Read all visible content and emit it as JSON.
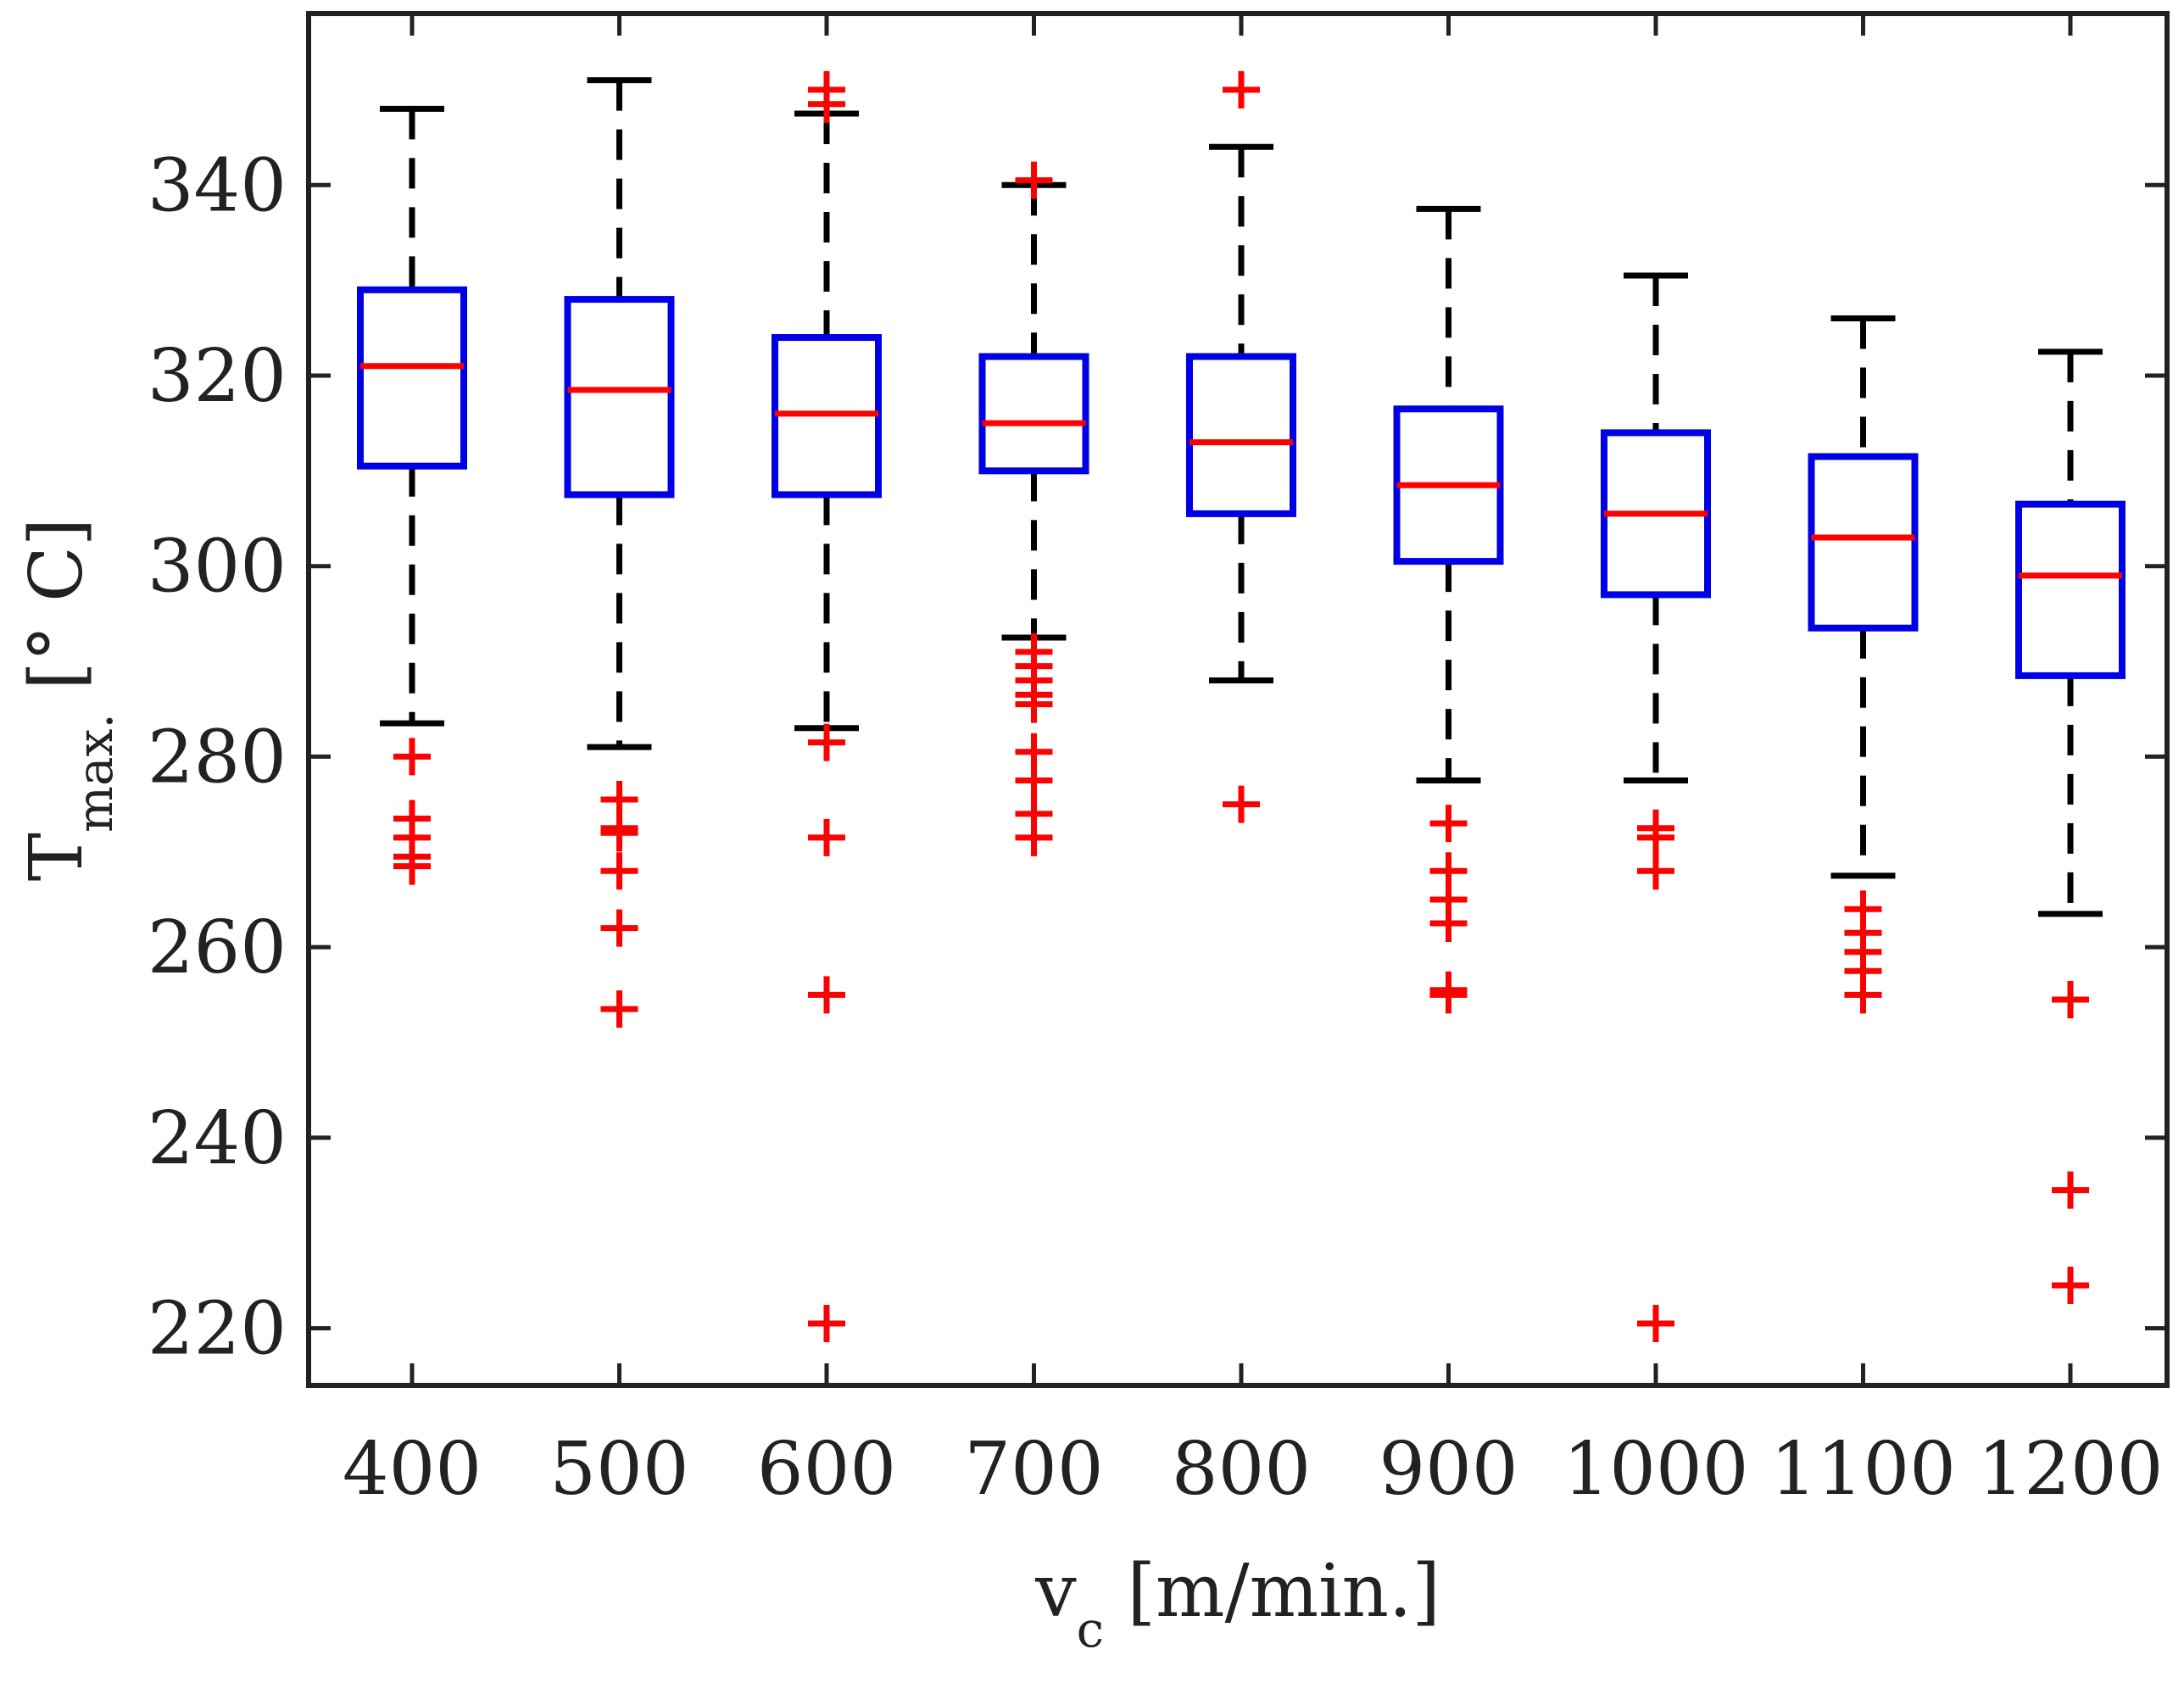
{
  "chart_data": {
    "type": "boxplot",
    "title": "",
    "xlabel": {
      "main": "v",
      "sub": "c",
      "unit": " [m/min.]"
    },
    "ylabel": {
      "main": "T",
      "sub": "max.",
      "unit": " [° C]"
    },
    "ylim": [
      214,
      358
    ],
    "yticks": [
      220,
      240,
      260,
      280,
      300,
      320,
      340
    ],
    "categories": [
      "400",
      "500",
      "600",
      "700",
      "800",
      "900",
      "1000",
      "1100",
      "1200"
    ],
    "boxes": [
      {
        "category": "400",
        "whisker_low": 283.5,
        "q1": 310.5,
        "median": 321.0,
        "q3": 329.0,
        "whisker_high": 348.0,
        "outliers": [
          280,
          273.5,
          271.5,
          269.5,
          268.5
        ]
      },
      {
        "category": "500",
        "whisker_low": 281.0,
        "q1": 307.5,
        "median": 318.5,
        "q3": 328.0,
        "whisker_high": 351.0,
        "outliers": [
          275.5,
          272.5,
          272.0,
          268.0,
          262.0,
          253.5
        ]
      },
      {
        "category": "600",
        "whisker_low": 283.0,
        "q1": 307.5,
        "median": 316.0,
        "q3": 324.0,
        "whisker_high": 347.5,
        "outliers": [
          350.0,
          348.5,
          281.5,
          271.5,
          255.0,
          220.5
        ]
      },
      {
        "category": "700",
        "whisker_low": 292.5,
        "q1": 310.0,
        "median": 315.0,
        "q3": 322.0,
        "whisker_high": 340.0,
        "outliers": [
          340.5,
          291.0,
          289.5,
          288.0,
          286.5,
          285.5,
          280.5,
          277.5,
          274.0,
          271.5
        ]
      },
      {
        "category": "800",
        "whisker_low": 288.0,
        "q1": 305.5,
        "median": 313.0,
        "q3": 322.0,
        "whisker_high": 344.0,
        "outliers": [
          350.0,
          275.0
        ]
      },
      {
        "category": "900",
        "whisker_low": 277.5,
        "q1": 300.5,
        "median": 308.5,
        "q3": 316.5,
        "whisker_high": 337.5,
        "outliers": [
          273.0,
          268.0,
          265.0,
          262.5,
          255.5,
          255.0
        ]
      },
      {
        "category": "1000",
        "whisker_low": 277.5,
        "q1": 297.0,
        "median": 305.5,
        "q3": 314.0,
        "whisker_high": 330.5,
        "outliers": [
          272.5,
          271.5,
          268.0,
          220.5
        ]
      },
      {
        "category": "1100",
        "whisker_low": 267.5,
        "q1": 293.5,
        "median": 303.0,
        "q3": 311.5,
        "whisker_high": 326.0,
        "outliers": [
          264.0,
          261.5,
          259.5,
          257.5,
          255.0
        ]
      },
      {
        "category": "1200",
        "whisker_low": 263.5,
        "q1": 288.5,
        "median": 299.0,
        "q3": 306.5,
        "whisker_high": 322.5,
        "outliers": [
          254.5,
          234.5,
          224.5
        ]
      }
    ],
    "colors": {
      "box": "#0000e6",
      "median": "#ff0000",
      "whisker": "#000000",
      "outlier": "#ff0000",
      "axes": "#222222"
    }
  }
}
